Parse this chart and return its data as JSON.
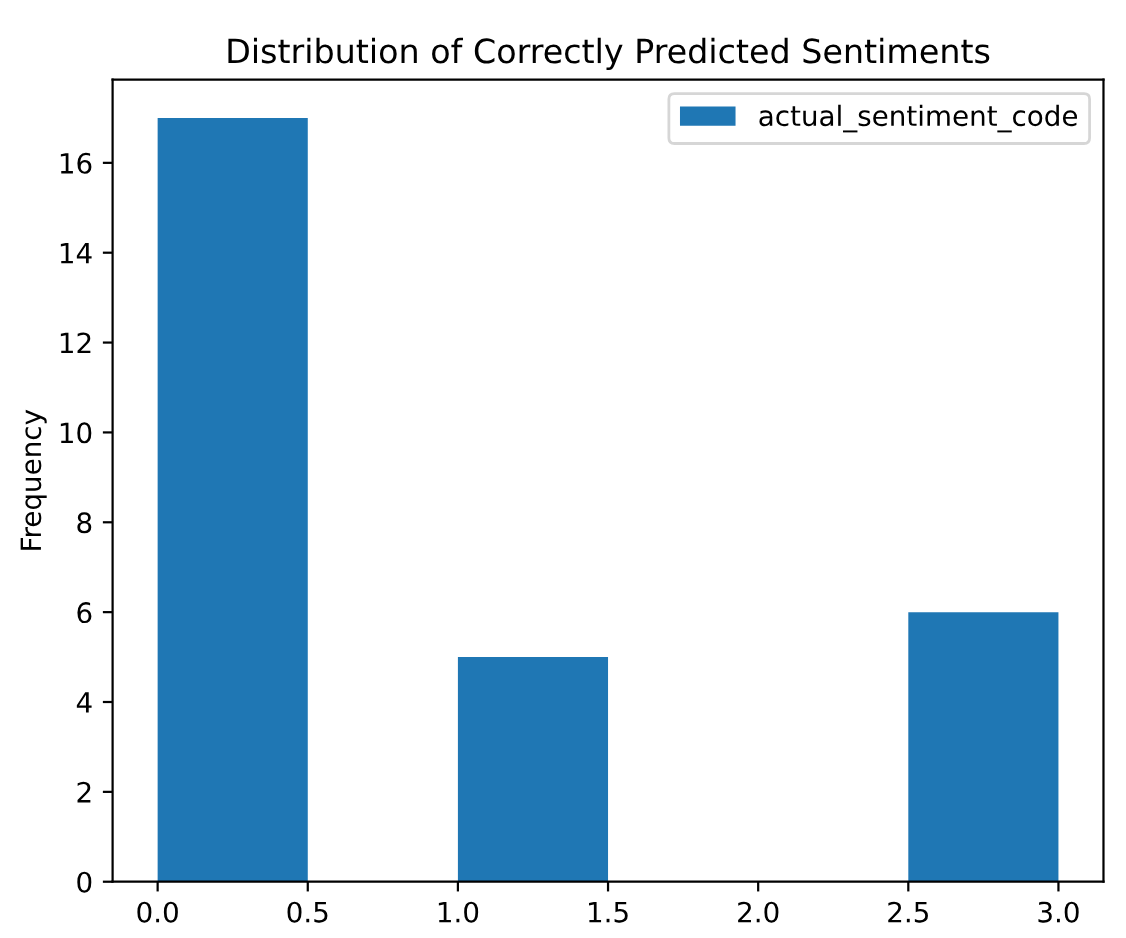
{
  "chart_data": {
    "type": "histogram",
    "title": "Distribution of Correctly Predicted Sentiments",
    "ylabel": "Frequency",
    "bins": [
      0,
      0.5,
      1,
      1.5,
      2,
      2.5,
      3
    ],
    "series": [
      {
        "name": "actual_sentiment_code",
        "color": "#1f77b4",
        "values": [
          17,
          0,
          5,
          0,
          0,
          6
        ]
      }
    ],
    "xlim": [
      -0.15,
      3.15
    ],
    "ylim": [
      0,
      17.85
    ],
    "xticks": [
      {
        "value": 0,
        "label": "0.0"
      },
      {
        "value": 0.5,
        "label": "0.5"
      },
      {
        "value": 1,
        "label": "1.0"
      },
      {
        "value": 1.5,
        "label": "1.5"
      },
      {
        "value": 2,
        "label": "2.0"
      },
      {
        "value": 2.5,
        "label": "2.5"
      },
      {
        "value": 3,
        "label": "3.0"
      }
    ],
    "yticks": [
      0,
      2,
      4,
      6,
      8,
      10,
      12,
      14,
      16
    ],
    "grid": false,
    "legend": "top right"
  }
}
